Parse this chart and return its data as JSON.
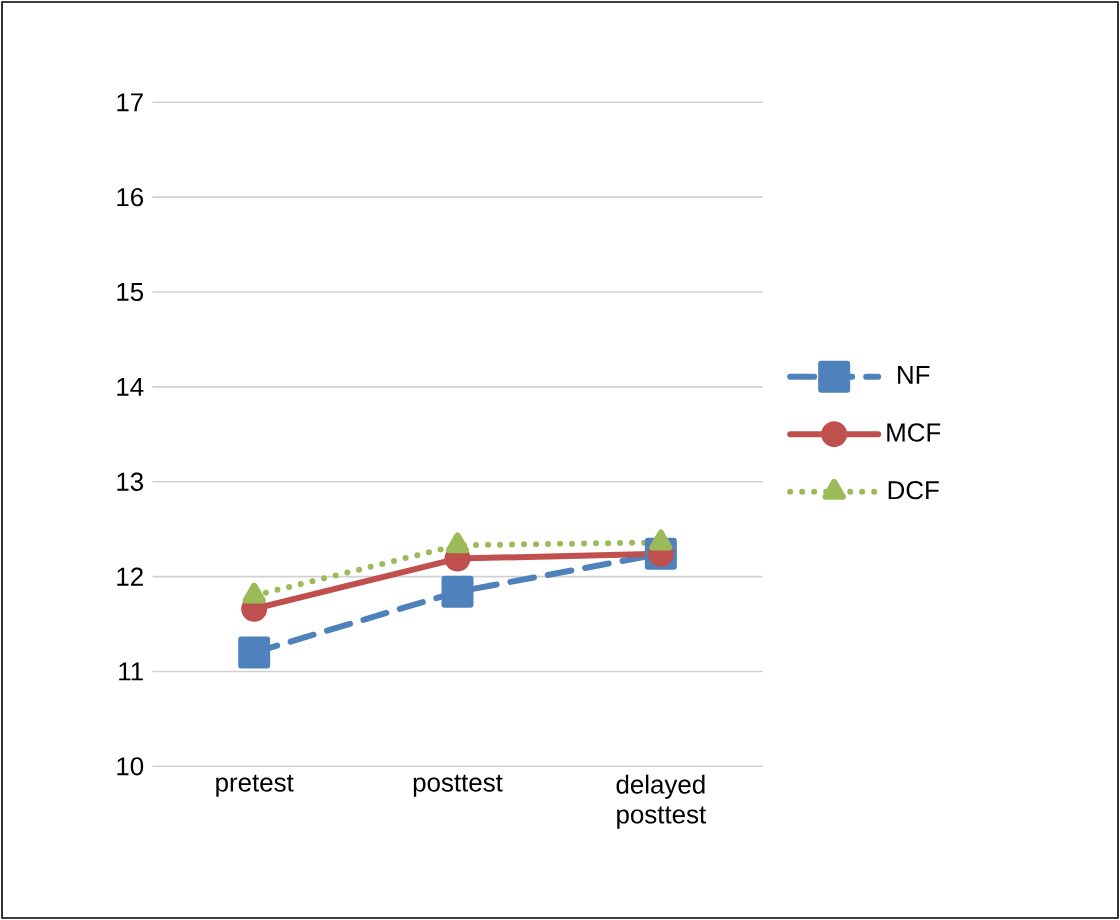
{
  "chart_data": {
    "type": "line",
    "categories": [
      "pretest",
      "posttest",
      "delayed posttest"
    ],
    "series": [
      {
        "name": "NF",
        "color": "#4f81bd",
        "values": [
          11.2,
          11.84,
          12.24
        ],
        "line_style": "dashed",
        "marker": "square"
      },
      {
        "name": "MCF",
        "color": "#c0504d",
        "values": [
          11.66,
          12.19,
          12.24
        ],
        "line_style": "solid",
        "marker": "circle"
      },
      {
        "name": "DCF",
        "color": "#9bbb59",
        "values": [
          11.8,
          12.33,
          12.36
        ],
        "line_style": "dotted",
        "marker": "triangle"
      }
    ],
    "ylim": [
      10,
      17
    ],
    "yticks": [
      10,
      11,
      12,
      13,
      14,
      15,
      16,
      17
    ],
    "grid": "y",
    "legend": "right"
  }
}
